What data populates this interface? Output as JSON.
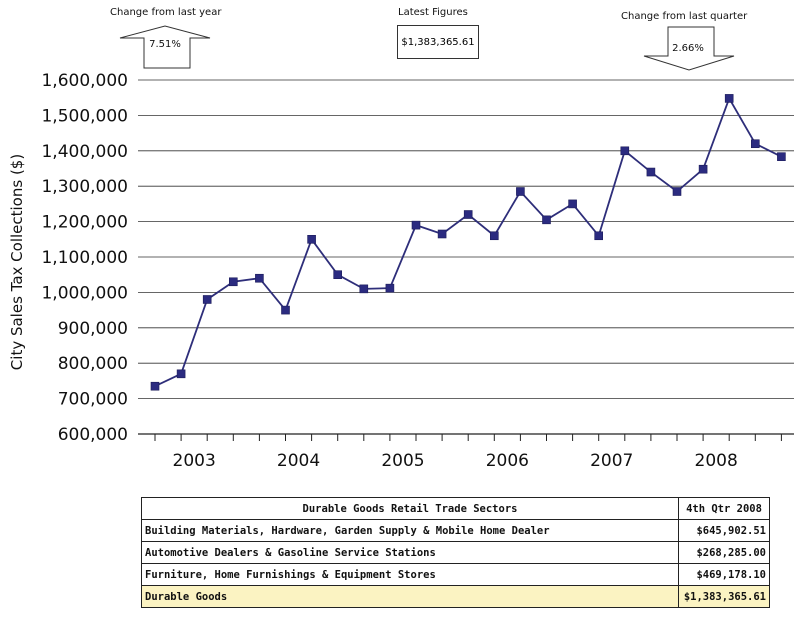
{
  "annotations": {
    "year_change": {
      "title": "Change from last year",
      "value": "7.51%",
      "direction": "up"
    },
    "latest": {
      "title": "Latest Figures",
      "value": "$1,383,365.61"
    },
    "quarter_change": {
      "title": "Change from last quarter",
      "value": "2.66%",
      "direction": "down"
    }
  },
  "chart_data": {
    "type": "line",
    "title": "",
    "xlabel": "",
    "ylabel": "City Sales Tax Collections ($)",
    "ylim": [
      600000,
      1600000
    ],
    "yticks": [
      "600,000",
      "700,000",
      "800,000",
      "900,000",
      "1,000,000",
      "1,100,000",
      "1,200,000",
      "1,300,000",
      "1,400,000",
      "1,500,000",
      "1,600,000"
    ],
    "year_labels": [
      "2003",
      "2004",
      "2005",
      "2006",
      "2007",
      "2008"
    ],
    "grid": true,
    "line_color": "#2e2e7a",
    "marker_color": "#2b2b80",
    "values": [
      735000,
      770000,
      980000,
      1030000,
      1040000,
      950000,
      1150000,
      1050000,
      1010000,
      1012000,
      1190000,
      1165000,
      1220000,
      1160000,
      1285000,
      1205000,
      1250000,
      1160000,
      1400000,
      1340000,
      1285000,
      1348000,
      1548000,
      1420000,
      1383365.61
    ]
  },
  "table": {
    "headers": [
      "Durable Goods Retail Trade Sectors",
      "4th Qtr 2008"
    ],
    "rows": [
      {
        "name": "Building Materials, Hardware, Garden Supply & Mobile Home Dealer",
        "value": "$645,902.51"
      },
      {
        "name": "Automotive Dealers & Gasoline Service Stations",
        "value": "$268,285.00"
      },
      {
        "name": "Furniture, Home Furnishings & Equipment Stores",
        "value": "$469,178.10"
      }
    ],
    "total": {
      "name": "Durable Goods",
      "value": "$1,383,365.61"
    },
    "total_highlight": "#fbf3c2"
  }
}
